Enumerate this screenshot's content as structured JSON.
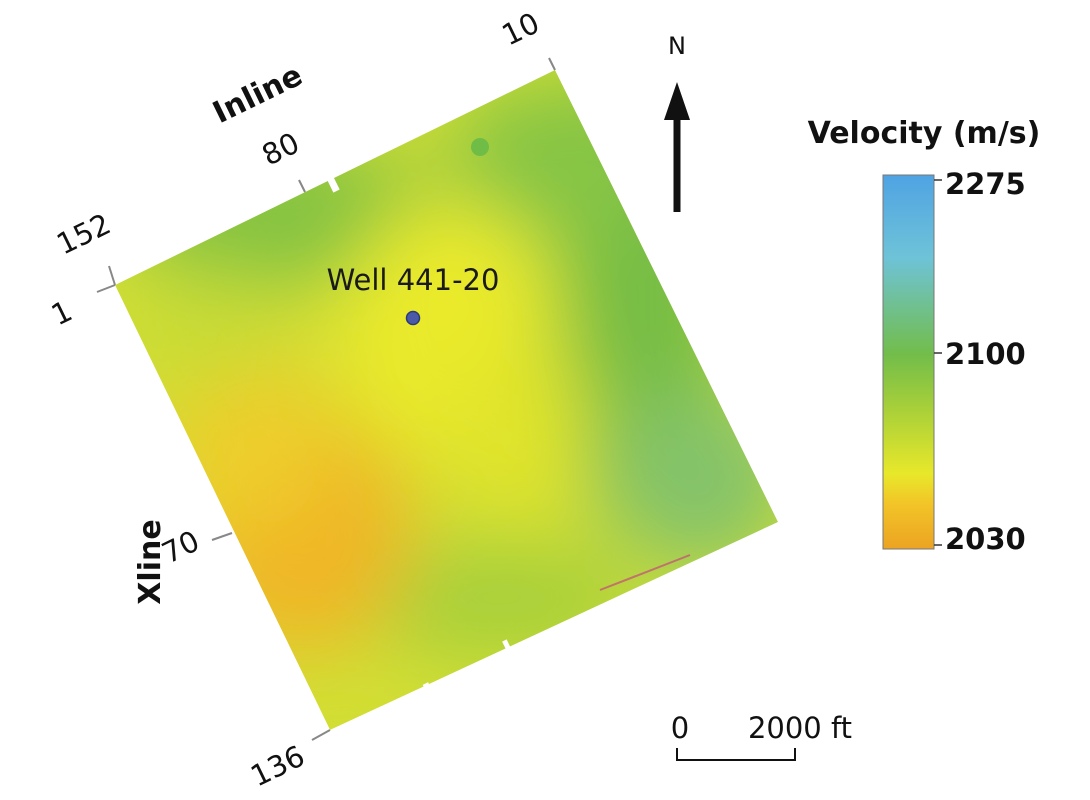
{
  "map": {
    "inline_axis": {
      "title": "Inline",
      "ticks": [
        "10",
        "80",
        "152"
      ]
    },
    "xline_axis": {
      "title": "Xline",
      "ticks": [
        "1",
        "70",
        "136"
      ]
    },
    "well": {
      "label": "Well 441-20",
      "color": "#4a5aa8"
    },
    "north_arrow": {
      "label": "N"
    },
    "scale_bar": {
      "start_label": "0",
      "end_label": "2000 ft",
      "length_value": 2000,
      "unit": "ft"
    }
  },
  "legend": {
    "title": "Velocity (m/s)",
    "min": 2030,
    "mid": 2100,
    "max": 2275,
    "tick_labels": [
      "2275",
      "2100",
      "2030"
    ],
    "colors": [
      "#4fa3e3",
      "#6ec3d8",
      "#72bd4a",
      "#a6cf3a",
      "#e8e82a",
      "#f2b425",
      "#eca322"
    ]
  }
}
